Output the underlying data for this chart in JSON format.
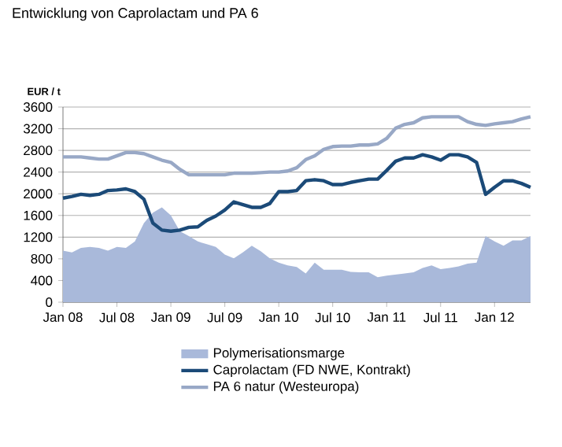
{
  "chart_data": {
    "type": "line",
    "title": "Entwicklung von Caprolactam und PA 6",
    "ylabel": "EUR / t",
    "x": [
      "2008-01",
      "2008-02",
      "2008-03",
      "2008-04",
      "2008-05",
      "2008-06",
      "2008-07",
      "2008-08",
      "2008-09",
      "2008-10",
      "2008-11",
      "2008-12",
      "2009-01",
      "2009-02",
      "2009-03",
      "2009-04",
      "2009-05",
      "2009-06",
      "2009-07",
      "2009-08",
      "2009-09",
      "2009-10",
      "2009-11",
      "2009-12",
      "2010-01",
      "2010-02",
      "2010-03",
      "2010-04",
      "2010-05",
      "2010-06",
      "2010-07",
      "2010-08",
      "2010-09",
      "2010-10",
      "2010-11",
      "2010-12",
      "2011-01",
      "2011-02",
      "2011-03",
      "2011-04",
      "2011-05",
      "2011-06",
      "2011-07",
      "2011-08",
      "2011-09",
      "2011-10",
      "2011-11",
      "2011-12",
      "2012-01",
      "2012-02",
      "2012-03",
      "2012-04",
      "2012-05"
    ],
    "series": [
      {
        "name": "Polymerisationsmarge",
        "type": "area",
        "color": "#a9b9da",
        "values": [
          950,
          920,
          1000,
          1020,
          1000,
          950,
          1020,
          1000,
          1120,
          1460,
          1650,
          1750,
          1600,
          1310,
          1220,
          1120,
          1070,
          1020,
          880,
          810,
          920,
          1040,
          940,
          810,
          730,
          680,
          650,
          530,
          730,
          600,
          600,
          600,
          560,
          550,
          550,
          460,
          490,
          510,
          530,
          550,
          630,
          680,
          610,
          630,
          660,
          710,
          730,
          1220,
          1120,
          1040,
          1140,
          1140,
          1220
        ]
      },
      {
        "name": "Caprolactam (FD NWE, Kontrakt)",
        "color": "#1b4a78",
        "values": [
          1920,
          1950,
          1990,
          1970,
          1990,
          2060,
          2070,
          2090,
          2040,
          1900,
          1460,
          1330,
          1310,
          1330,
          1380,
          1390,
          1510,
          1590,
          1700,
          1850,
          1800,
          1750,
          1750,
          1820,
          2040,
          2040,
          2060,
          2240,
          2260,
          2240,
          2170,
          2170,
          2210,
          2240,
          2270,
          2270,
          2430,
          2600,
          2660,
          2660,
          2720,
          2680,
          2620,
          2720,
          2720,
          2680,
          2580,
          1990,
          2120,
          2240,
          2240,
          2190,
          2120
        ]
      },
      {
        "name": "PA 6 natur (Westeuropa)",
        "color": "#98a8c6",
        "values": [
          2680,
          2680,
          2680,
          2660,
          2640,
          2640,
          2700,
          2760,
          2760,
          2740,
          2680,
          2620,
          2580,
          2450,
          2350,
          2350,
          2350,
          2350,
          2350,
          2380,
          2380,
          2380,
          2390,
          2400,
          2400,
          2420,
          2480,
          2630,
          2700,
          2820,
          2870,
          2880,
          2880,
          2900,
          2900,
          2920,
          3020,
          3210,
          3280,
          3310,
          3400,
          3420,
          3420,
          3420,
          3420,
          3330,
          3280,
          3260,
          3290,
          3310,
          3330,
          3380,
          3420
        ]
      }
    ],
    "xlim": [
      "2008-01",
      "2012-05"
    ],
    "xticks": [
      {
        "value": "2008-01",
        "label": "Jan 08"
      },
      {
        "value": "2008-07",
        "label": "Jul 08"
      },
      {
        "value": "2009-01",
        "label": "Jan 09"
      },
      {
        "value": "2009-07",
        "label": "Jul 09"
      },
      {
        "value": "2010-01",
        "label": "Jan 10"
      },
      {
        "value": "2010-07",
        "label": "Jul 10"
      },
      {
        "value": "2011-01",
        "label": "Jan 11"
      },
      {
        "value": "2011-07",
        "label": "Jul 11"
      },
      {
        "value": "2012-01",
        "label": "Jan 12"
      }
    ],
    "ylim": [
      0,
      3600
    ],
    "yticks": [
      0,
      400,
      800,
      1200,
      1600,
      2000,
      2400,
      2800,
      3200,
      3600
    ],
    "grid": "y",
    "legend": "bottom"
  }
}
